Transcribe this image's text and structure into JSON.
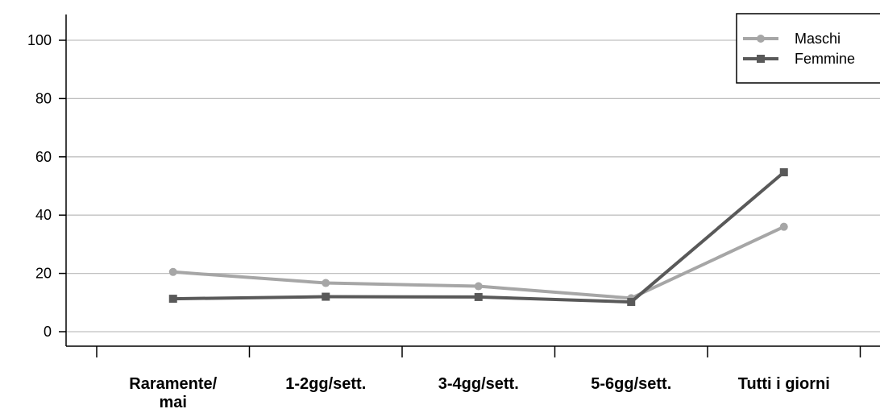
{
  "chart_data": {
    "type": "line",
    "categories": [
      "Raramente/ mai",
      "1-2gg/sett.",
      "3-4gg/sett.",
      "5-6gg/sett.",
      "Tutti i giorni"
    ],
    "category_lines": [
      [
        "Raramente/",
        "mai"
      ],
      [
        "1-2gg/sett."
      ],
      [
        "3-4gg/sett."
      ],
      [
        "5-6gg/sett."
      ],
      [
        "Tutti i giorni"
      ]
    ],
    "series": [
      {
        "name": "Maschi",
        "values": [
          20.5,
          16.7,
          15.6,
          11.5,
          36.0
        ],
        "color": "#a6a6a6",
        "marker": "circle"
      },
      {
        "name": "Femmine",
        "values": [
          11.3,
          12.0,
          11.9,
          10.2,
          54.7
        ],
        "color": "#595959",
        "marker": "square"
      }
    ],
    "yticks": [
      0,
      20,
      40,
      60,
      80,
      100
    ],
    "ylim": [
      -5,
      105
    ],
    "grid": true,
    "legend": "top-right",
    "title": "",
    "xlabel": "",
    "ylabel": ""
  }
}
